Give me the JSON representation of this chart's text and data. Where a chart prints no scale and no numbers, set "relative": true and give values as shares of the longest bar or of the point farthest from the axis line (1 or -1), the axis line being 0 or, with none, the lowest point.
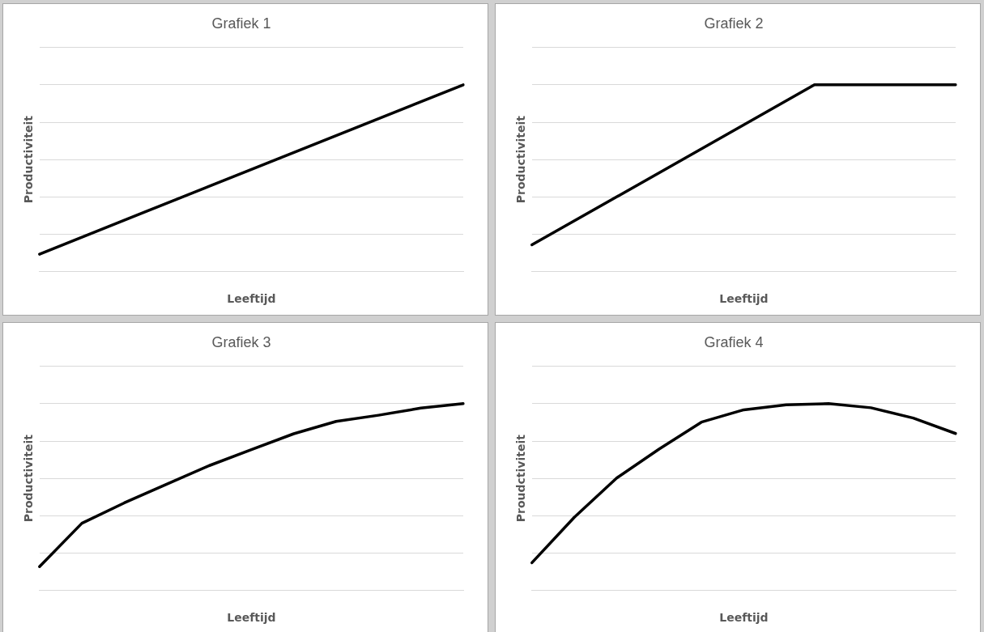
{
  "chart_data": [
    {
      "type": "line",
      "title": "Grafiek 1",
      "xlabel": "Leeftijd",
      "ylabel": "Productiviteit",
      "relative": true,
      "grid": "y",
      "legend": false,
      "marker": "none",
      "line_style": "solid",
      "categories": [
        null,
        null,
        null,
        null,
        null
      ],
      "series": [
        {
          "color": "#000000",
          "values": [
            0.094,
            0.321,
            0.547,
            0.774,
            1
          ]
        }
      ]
    },
    {
      "type": "line",
      "title": "Grafiek 2",
      "xlabel": "Leeftijd",
      "ylabel": "Productiviteit",
      "relative": true,
      "grid": "y",
      "legend": false,
      "marker": "none",
      "line_style": "solid",
      "categories": [
        null,
        null,
        null,
        null
      ],
      "series": [
        {
          "color": "#000000",
          "values": [
            0.144,
            0.572,
            1,
            1
          ]
        }
      ]
    },
    {
      "type": "line",
      "title": "Grafiek 3",
      "xlabel": "Leeftijd",
      "ylabel": "Productiviteit",
      "relative": true,
      "grid": "y",
      "legend": false,
      "marker": "none",
      "line_style": "solid",
      "categories": [
        null,
        null,
        null,
        null,
        null,
        null,
        null,
        null,
        null,
        null,
        null
      ],
      "series": [
        {
          "color": "#000000",
          "values": [
            0.128,
            0.36,
            0.469,
            0.569,
            0.668,
            0.754,
            0.839,
            0.905,
            0.938,
            0.976,
            1
          ]
        }
      ]
    },
    {
      "type": "line",
      "title": "Grafiek 4",
      "xlabel": "Leeftijd",
      "ylabel": "Proudctiviteit",
      "relative": true,
      "grid": "y",
      "legend": false,
      "marker": "none",
      "line_style": "solid",
      "categories": [
        null,
        null,
        null,
        null,
        null,
        null,
        null,
        null,
        null,
        null,
        null
      ],
      "series": [
        {
          "color": "#000000",
          "values": [
            0.149,
            0.392,
            0.602,
            0.757,
            0.901,
            0.967,
            0.994,
            1,
            0.978,
            0.923,
            0.84
          ]
        }
      ]
    }
  ]
}
